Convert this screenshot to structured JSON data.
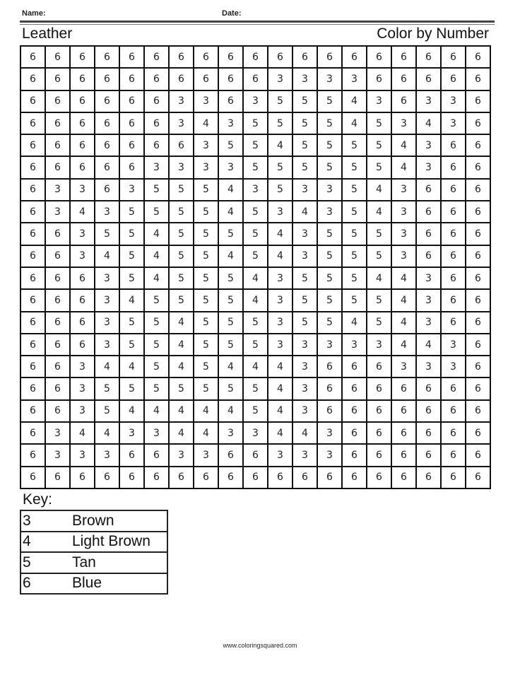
{
  "header": {
    "name_label": "Name:",
    "date_label": "Date:"
  },
  "title_left": "Leather",
  "title_right": "Color by Number",
  "grid": [
    [
      6,
      6,
      6,
      6,
      6,
      6,
      6,
      6,
      6,
      6,
      6,
      6,
      6,
      6,
      6,
      6,
      6,
      6,
      6
    ],
    [
      6,
      6,
      6,
      6,
      6,
      6,
      6,
      6,
      6,
      6,
      3,
      3,
      3,
      3,
      6,
      6,
      6,
      6,
      6
    ],
    [
      6,
      6,
      6,
      6,
      6,
      6,
      3,
      3,
      6,
      3,
      5,
      5,
      5,
      4,
      3,
      6,
      3,
      3,
      6
    ],
    [
      6,
      6,
      6,
      6,
      6,
      6,
      3,
      4,
      3,
      5,
      5,
      5,
      5,
      4,
      5,
      3,
      4,
      3,
      6
    ],
    [
      6,
      6,
      6,
      6,
      6,
      6,
      6,
      3,
      5,
      5,
      4,
      5,
      5,
      5,
      5,
      4,
      3,
      6,
      6
    ],
    [
      6,
      6,
      6,
      6,
      6,
      3,
      3,
      3,
      3,
      5,
      5,
      5,
      5,
      5,
      5,
      4,
      3,
      6,
      6
    ],
    [
      6,
      3,
      3,
      6,
      3,
      5,
      5,
      5,
      4,
      3,
      5,
      3,
      3,
      5,
      4,
      3,
      6,
      6,
      6
    ],
    [
      6,
      3,
      4,
      3,
      5,
      5,
      5,
      5,
      4,
      5,
      3,
      4,
      3,
      5,
      4,
      3,
      6,
      6,
      6
    ],
    [
      6,
      6,
      3,
      5,
      5,
      4,
      5,
      5,
      5,
      5,
      4,
      3,
      5,
      5,
      5,
      3,
      6,
      6,
      6
    ],
    [
      6,
      6,
      3,
      4,
      5,
      4,
      5,
      5,
      4,
      5,
      4,
      3,
      5,
      5,
      5,
      3,
      6,
      6,
      6
    ],
    [
      6,
      6,
      6,
      3,
      5,
      4,
      5,
      5,
      5,
      4,
      3,
      5,
      5,
      5,
      4,
      4,
      3,
      6,
      6
    ],
    [
      6,
      6,
      6,
      3,
      4,
      5,
      5,
      5,
      5,
      4,
      3,
      5,
      5,
      5,
      5,
      4,
      3,
      6,
      6
    ],
    [
      6,
      6,
      6,
      3,
      5,
      5,
      4,
      5,
      5,
      5,
      3,
      5,
      5,
      4,
      5,
      4,
      3,
      6,
      6
    ],
    [
      6,
      6,
      6,
      3,
      5,
      5,
      4,
      5,
      5,
      5,
      3,
      3,
      3,
      3,
      3,
      4,
      4,
      3,
      6
    ],
    [
      6,
      6,
      3,
      4,
      4,
      5,
      4,
      5,
      4,
      4,
      4,
      3,
      6,
      6,
      6,
      3,
      3,
      3,
      6
    ],
    [
      6,
      6,
      3,
      5,
      5,
      5,
      5,
      5,
      5,
      5,
      4,
      3,
      6,
      6,
      6,
      6,
      6,
      6,
      6
    ],
    [
      6,
      6,
      3,
      5,
      4,
      4,
      4,
      4,
      4,
      5,
      4,
      3,
      6,
      6,
      6,
      6,
      6,
      6,
      6
    ],
    [
      6,
      3,
      4,
      4,
      3,
      3,
      4,
      4,
      3,
      3,
      4,
      4,
      3,
      6,
      6,
      6,
      6,
      6,
      6
    ],
    [
      6,
      3,
      3,
      3,
      6,
      6,
      3,
      3,
      6,
      6,
      3,
      3,
      3,
      6,
      6,
      6,
      6,
      6,
      6
    ],
    [
      6,
      6,
      6,
      6,
      6,
      6,
      6,
      6,
      6,
      6,
      6,
      6,
      6,
      6,
      6,
      6,
      6,
      6,
      6
    ]
  ],
  "key": {
    "title": "Key:",
    "items": [
      {
        "number": "3",
        "color": "Brown"
      },
      {
        "number": "4",
        "color": "Light Brown"
      },
      {
        "number": "5",
        "color": "Tan"
      },
      {
        "number": "6",
        "color": "Blue"
      }
    ]
  },
  "footer": "www.coloringsquared.com"
}
